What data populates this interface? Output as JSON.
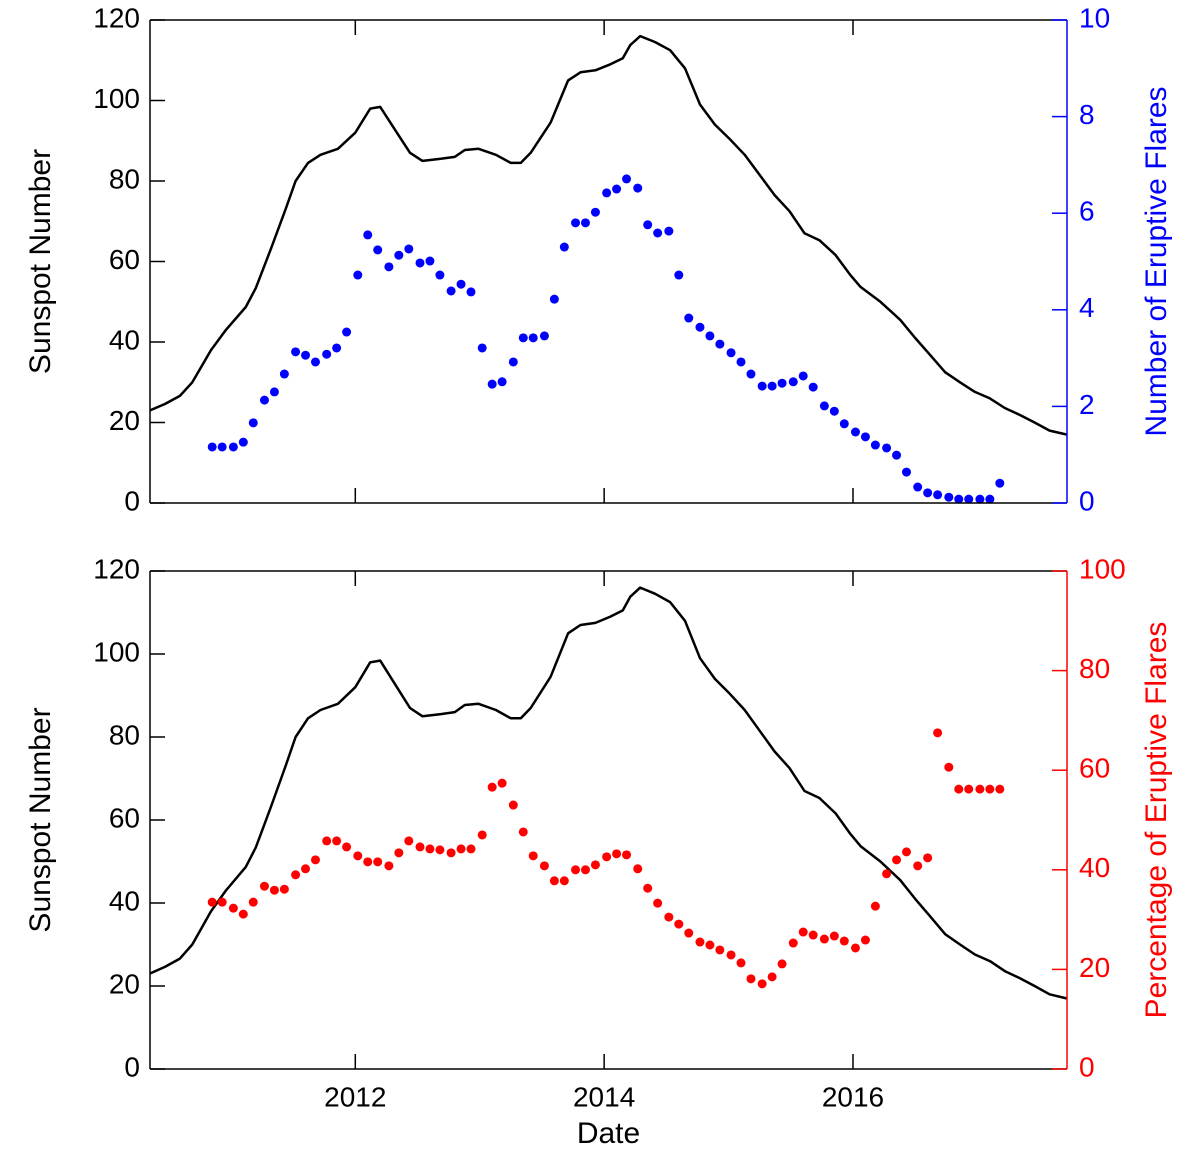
{
  "chart_data": [
    {
      "type": "line",
      "ylabel": "Sunspot Number",
      "y2label": "Number of Eruptive Flares",
      "xlim": [
        2010.35,
        2017.72
      ],
      "xticks": [
        2012,
        2014,
        2016
      ],
      "show_xtick_labels": false,
      "ylim": [
        0,
        120
      ],
      "yticks": [
        0,
        20,
        40,
        60,
        80,
        100,
        120
      ],
      "y2lim": [
        0,
        10
      ],
      "y2ticks": [
        0,
        2,
        4,
        6,
        8,
        10
      ],
      "y2color": "#0000ff",
      "series": [
        {
          "color": "#000000",
          "mode": "line",
          "x": [
            2010.35,
            2010.47,
            2010.59,
            2010.69,
            2010.84,
            2010.96,
            2011.12,
            2011.2,
            2011.32,
            2011.44,
            2011.52,
            2011.62,
            2011.72,
            2011.86,
            2012.0,
            2012.12,
            2012.2,
            2012.32,
            2012.44,
            2012.54,
            2012.68,
            2012.8,
            2012.88,
            2012.99,
            2013.13,
            2013.25,
            2013.33,
            2013.41,
            2013.57,
            2013.71,
            2013.81,
            2013.93,
            2014.05,
            2014.15,
            2014.21,
            2014.29,
            2014.41,
            2014.53,
            2014.65,
            2014.77,
            2014.89,
            2015.01,
            2015.13,
            2015.25,
            2015.37,
            2015.49,
            2015.61,
            2015.73,
            2015.86,
            2015.98,
            2016.06,
            2016.22,
            2016.38,
            2016.5,
            2016.62,
            2016.74,
            2016.86,
            2016.98,
            2017.1,
            2017.22,
            2017.34,
            2017.46,
            2017.58,
            2017.72
          ],
          "values": [
            23,
            24.6,
            26.6,
            30,
            38,
            43,
            48.7,
            53.4,
            63,
            73,
            80,
            84.5,
            86.5,
            88,
            92,
            98,
            98.4,
            92.7,
            87,
            85,
            85.5,
            86,
            87.7,
            88,
            86.5,
            84.5,
            84.5,
            87,
            94.5,
            105,
            107,
            107.5,
            109,
            110.5,
            113.8,
            116,
            114.5,
            112.5,
            108,
            99,
            94,
            90.4,
            86.5,
            81.5,
            76.5,
            72.5,
            67,
            65.3,
            61.6,
            56.6,
            53.7,
            50,
            45.5,
            41,
            36.8,
            32.5,
            30,
            27.6,
            26,
            23.6,
            21.9,
            20,
            18,
            17
          ]
        },
        {
          "color": "#0000ff",
          "mode": "markers",
          "axis": "y2",
          "x": [
            2010.85,
            2010.93,
            2011.02,
            2011.1,
            2011.18,
            2011.27,
            2011.35,
            2011.43,
            2011.52,
            2011.6,
            2011.68,
            2011.77,
            2011.85,
            2011.93,
            2012.02,
            2012.1,
            2012.18,
            2012.27,
            2012.35,
            2012.43,
            2012.52,
            2012.6,
            2012.68,
            2012.77,
            2012.85,
            2012.93,
            2013.02,
            2013.1,
            2013.18,
            2013.27,
            2013.35,
            2013.43,
            2013.52,
            2013.6,
            2013.68,
            2013.77,
            2013.85,
            2013.93,
            2014.02,
            2014.1,
            2014.18,
            2014.27,
            2014.35,
            2014.43,
            2014.52,
            2014.6,
            2014.68,
            2014.77,
            2014.85,
            2014.93,
            2015.02,
            2015.1,
            2015.18,
            2015.27,
            2015.35,
            2015.43,
            2015.52,
            2015.6,
            2015.68,
            2015.77,
            2015.85,
            2015.93,
            2016.02,
            2016.1,
            2016.18,
            2016.27,
            2016.35,
            2016.43,
            2016.52,
            2016.6,
            2016.68,
            2016.77,
            2016.85,
            2016.93,
            2017.02,
            2017.1,
            2017.18
          ],
          "values": [
            1.16,
            1.16,
            1.16,
            1.26,
            1.66,
            2.13,
            2.3,
            2.67,
            3.13,
            3.06,
            2.92,
            3.08,
            3.21,
            3.54,
            4.72,
            5.55,
            5.24,
            4.89,
            5.13,
            5.26,
            4.97,
            5.01,
            4.72,
            4.39,
            4.53,
            4.37,
            3.21,
            2.46,
            2.51,
            2.92,
            3.42,
            3.42,
            3.46,
            4.22,
            5.3,
            5.8,
            5.8,
            6.02,
            6.42,
            6.5,
            6.71,
            6.52,
            5.76,
            5.59,
            5.63,
            4.72,
            3.83,
            3.64,
            3.46,
            3.29,
            3.11,
            2.92,
            2.67,
            2.42,
            2.42,
            2.48,
            2.51,
            2.63,
            2.4,
            2.01,
            1.9,
            1.64,
            1.47,
            1.37,
            1.2,
            1.14,
            0.99,
            0.64,
            0.33,
            0.21,
            0.17,
            0.12,
            0.08,
            0.08,
            0.08,
            0.08,
            0.41
          ]
        }
      ]
    },
    {
      "type": "line",
      "xlabel": "Date",
      "ylabel": "Sunspot Number",
      "y2label": "Percentage of Eruptive Flares",
      "xlim": [
        2010.35,
        2017.72
      ],
      "xticks": [
        2012,
        2014,
        2016
      ],
      "show_xtick_labels": true,
      "ylim": [
        0,
        120
      ],
      "yticks": [
        0,
        20,
        40,
        60,
        80,
        100,
        120
      ],
      "y2lim": [
        0,
        100
      ],
      "y2ticks": [
        0,
        20,
        40,
        60,
        80,
        100
      ],
      "y2color": "#ff0000",
      "series": [
        {
          "color": "#000000",
          "mode": "line",
          "x": [
            2010.35,
            2010.47,
            2010.59,
            2010.69,
            2010.84,
            2010.96,
            2011.12,
            2011.2,
            2011.32,
            2011.44,
            2011.52,
            2011.62,
            2011.72,
            2011.86,
            2012.0,
            2012.12,
            2012.2,
            2012.32,
            2012.44,
            2012.54,
            2012.68,
            2012.8,
            2012.88,
            2012.99,
            2013.13,
            2013.25,
            2013.33,
            2013.41,
            2013.57,
            2013.71,
            2013.81,
            2013.93,
            2014.05,
            2014.15,
            2014.21,
            2014.29,
            2014.41,
            2014.53,
            2014.65,
            2014.77,
            2014.89,
            2015.01,
            2015.13,
            2015.25,
            2015.37,
            2015.49,
            2015.61,
            2015.73,
            2015.86,
            2015.98,
            2016.06,
            2016.22,
            2016.38,
            2016.5,
            2016.62,
            2016.74,
            2016.86,
            2016.98,
            2017.1,
            2017.22,
            2017.34,
            2017.46,
            2017.58,
            2017.72
          ],
          "values": [
            23,
            24.6,
            26.6,
            30,
            38,
            43,
            48.7,
            53.4,
            63,
            73,
            80,
            84.5,
            86.5,
            88,
            92,
            98,
            98.4,
            92.7,
            87,
            85,
            85.5,
            86,
            87.7,
            88,
            86.5,
            84.5,
            84.5,
            87,
            94.5,
            105,
            107,
            107.5,
            109,
            110.5,
            113.8,
            116,
            114.5,
            112.5,
            108,
            99,
            94,
            90.4,
            86.5,
            81.5,
            76.5,
            72.5,
            67,
            65.3,
            61.6,
            56.6,
            53.7,
            50,
            45.5,
            41,
            36.8,
            32.5,
            30,
            27.6,
            26,
            23.6,
            21.9,
            20,
            18,
            17
          ]
        },
        {
          "color": "#ff0000",
          "mode": "markers",
          "axis": "y2",
          "x": [
            2010.85,
            2010.93,
            2011.02,
            2011.1,
            2011.18,
            2011.27,
            2011.35,
            2011.43,
            2011.52,
            2011.6,
            2011.68,
            2011.77,
            2011.85,
            2011.93,
            2012.02,
            2012.1,
            2012.18,
            2012.27,
            2012.35,
            2012.43,
            2012.52,
            2012.6,
            2012.68,
            2012.77,
            2012.85,
            2012.93,
            2013.02,
            2013.1,
            2013.18,
            2013.27,
            2013.35,
            2013.43,
            2013.52,
            2013.6,
            2013.68,
            2013.77,
            2013.85,
            2013.93,
            2014.02,
            2014.1,
            2014.18,
            2014.27,
            2014.35,
            2014.43,
            2014.52,
            2014.6,
            2014.68,
            2014.77,
            2014.85,
            2014.93,
            2015.02,
            2015.1,
            2015.18,
            2015.27,
            2015.35,
            2015.43,
            2015.52,
            2015.6,
            2015.68,
            2015.77,
            2015.85,
            2015.93,
            2016.02,
            2016.1,
            2016.18,
            2016.27,
            2016.35,
            2016.43,
            2016.52,
            2016.6,
            2016.68,
            2016.77,
            2016.85,
            2016.93,
            2017.02,
            2017.1,
            2017.18
          ],
          "values": [
            33.5,
            33.5,
            32.3,
            31.1,
            33.5,
            36.7,
            35.9,
            36.1,
            39,
            40.2,
            42,
            45.8,
            45.8,
            44.6,
            42.8,
            41.6,
            41.6,
            40.8,
            43.4,
            45.8,
            44.6,
            44.2,
            44,
            43.4,
            44.2,
            44.2,
            47,
            56.6,
            57.4,
            53,
            47.6,
            42.8,
            40.8,
            37.8,
            37.8,
            40,
            40,
            41,
            42.6,
            43.2,
            43,
            40.2,
            36.3,
            33.3,
            30.5,
            29.1,
            27.3,
            25.5,
            24.9,
            23.9,
            22.9,
            21.3,
            18.1,
            17.1,
            18.5,
            21.1,
            25.3,
            27.5,
            26.9,
            26.1,
            26.7,
            25.7,
            24.3,
            25.9,
            32.7,
            39.2,
            42,
            43.6,
            40.8,
            42.4,
            67.5,
            60.6,
            56.2,
            56.2,
            56.2,
            56.2,
            56.2
          ]
        }
      ]
    }
  ]
}
